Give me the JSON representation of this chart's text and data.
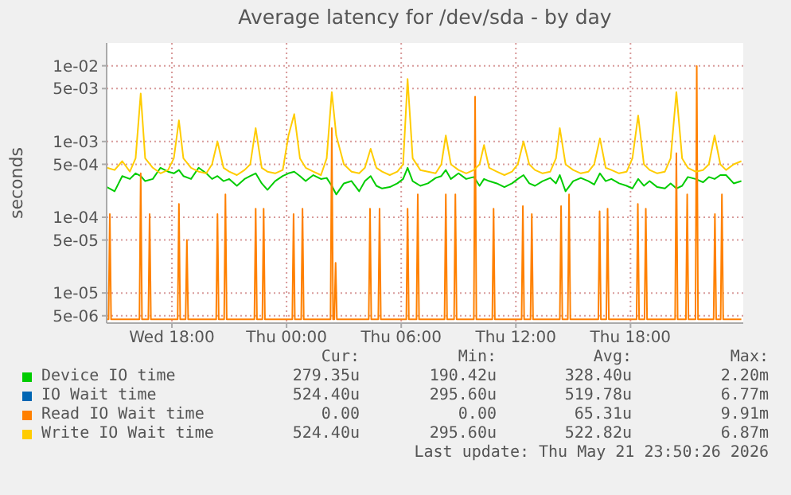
{
  "chart_data": {
    "type": "line",
    "title": "Average latency for /dev/sda - by day",
    "ylabel": "seconds",
    "log": "y",
    "grid": true,
    "legend": "bottom",
    "marker": "none",
    "line_style": "solid",
    "xlim": [
      "2026-05-20T14:35",
      "2026-05-21T23:54"
    ],
    "xticks": [
      {
        "value": "2026-05-20T18:00",
        "label": "Wed 18:00"
      },
      {
        "value": "2026-05-21T00:00",
        "label": "Thu 00:00"
      },
      {
        "value": "2026-05-21T06:00",
        "label": "Thu 06:00"
      },
      {
        "value": "2026-05-21T12:00",
        "label": "Thu 12:00"
      },
      {
        "value": "2026-05-21T18:00",
        "label": "Thu 18:00"
      }
    ],
    "ylim": [
      4e-06,
      0.02
    ],
    "yticks": [
      {
        "value": 5e-06,
        "label": "5e-06"
      },
      {
        "value": 1e-05,
        "label": "1e-05"
      },
      {
        "value": 5e-05,
        "label": "5e-05"
      },
      {
        "value": 0.0001,
        "label": "1e-04"
      },
      {
        "value": 0.0005,
        "label": "5e-04"
      },
      {
        "value": 0.001,
        "label": "1e-03"
      },
      {
        "value": 0.005,
        "label": "5e-03"
      },
      {
        "value": 0.01,
        "label": "1e-02"
      }
    ],
    "x": [
      "2026-05-20T14:36",
      "2026-05-20T15:00",
      "2026-05-20T15:24",
      "2026-05-20T15:48",
      "2026-05-20T16:06",
      "2026-05-20T16:22",
      "2026-05-20T16:36",
      "2026-05-20T17:00",
      "2026-05-20T17:24",
      "2026-05-20T17:48",
      "2026-05-20T18:06",
      "2026-05-20T18:22",
      "2026-05-20T18:36",
      "2026-05-20T19:00",
      "2026-05-20T19:24",
      "2026-05-20T19:48",
      "2026-05-20T20:06",
      "2026-05-20T20:23",
      "2026-05-20T20:42",
      "2026-05-20T21:00",
      "2026-05-20T21:24",
      "2026-05-20T21:48",
      "2026-05-20T22:06",
      "2026-05-20T22:23",
      "2026-05-20T22:42",
      "2026-05-20T23:00",
      "2026-05-20T23:24",
      "2026-05-20T23:48",
      "2026-05-21T00:06",
      "2026-05-21T00:24",
      "2026-05-21T00:42",
      "2026-05-21T01:00",
      "2026-05-21T01:24",
      "2026-05-21T01:48",
      "2026-05-21T02:06",
      "2026-05-21T02:22",
      "2026-05-21T02:36",
      "2026-05-21T03:00",
      "2026-05-21T03:24",
      "2026-05-21T03:48",
      "2026-05-21T04:06",
      "2026-05-21T04:24",
      "2026-05-21T04:42",
      "2026-05-21T05:00",
      "2026-05-21T05:24",
      "2026-05-21T05:48",
      "2026-05-21T06:06",
      "2026-05-21T06:20",
      "2026-05-21T06:36",
      "2026-05-21T07:00",
      "2026-05-21T07:24",
      "2026-05-21T07:48",
      "2026-05-21T08:06",
      "2026-05-21T08:20",
      "2026-05-21T08:36",
      "2026-05-21T09:00",
      "2026-05-21T09:24",
      "2026-05-21T09:48",
      "2026-05-21T10:06",
      "2026-05-21T10:20",
      "2026-05-21T10:36",
      "2026-05-21T11:00",
      "2026-05-21T11:24",
      "2026-05-21T11:48",
      "2026-05-21T12:06",
      "2026-05-21T12:24",
      "2026-05-21T12:42",
      "2026-05-21T13:00",
      "2026-05-21T13:24",
      "2026-05-21T13:48",
      "2026-05-21T14:06",
      "2026-05-21T14:18",
      "2026-05-21T14:36",
      "2026-05-21T15:00",
      "2026-05-21T15:24",
      "2026-05-21T15:48",
      "2026-05-21T16:06",
      "2026-05-21T16:24",
      "2026-05-21T16:42",
      "2026-05-21T17:00",
      "2026-05-21T17:24",
      "2026-05-21T17:48",
      "2026-05-21T18:06",
      "2026-05-21T18:24",
      "2026-05-21T18:42",
      "2026-05-21T19:00",
      "2026-05-21T19:24",
      "2026-05-21T19:48",
      "2026-05-21T20:06",
      "2026-05-21T20:24",
      "2026-05-21T20:42",
      "2026-05-21T21:00",
      "2026-05-21T21:24",
      "2026-05-21T21:48",
      "2026-05-21T22:06",
      "2026-05-21T22:24",
      "2026-05-21T22:42",
      "2026-05-21T23:00",
      "2026-05-21T23:24",
      "2026-05-21T23:48"
    ],
    "series": [
      {
        "name": "Device IO time",
        "color": "#00cc00",
        "values": [
          0.00025,
          0.00022,
          0.00035,
          0.00032,
          0.00038,
          0.00035,
          0.0003,
          0.00032,
          0.00045,
          0.0004,
          0.00038,
          0.00042,
          0.00035,
          0.00032,
          0.00045,
          0.00038,
          0.00032,
          0.00035,
          0.0003,
          0.00032,
          0.00026,
          0.00032,
          0.00035,
          0.00038,
          0.00028,
          0.00023,
          0.0003,
          0.00035,
          0.00038,
          0.0004,
          0.00035,
          0.0003,
          0.00036,
          0.00032,
          0.00033,
          0.00026,
          0.0002,
          0.00028,
          0.0003,
          0.00022,
          0.0003,
          0.00035,
          0.00026,
          0.00024,
          0.00025,
          0.00028,
          0.00032,
          0.00045,
          0.0003,
          0.00026,
          0.00028,
          0.00033,
          0.00035,
          0.00042,
          0.00032,
          0.00038,
          0.00032,
          0.00034,
          0.00026,
          0.00032,
          0.0003,
          0.00028,
          0.00025,
          0.00028,
          0.00032,
          0.00036,
          0.00028,
          0.00026,
          0.0003,
          0.00033,
          0.00028,
          0.00036,
          0.00022,
          0.0003,
          0.00033,
          0.0003,
          0.00027,
          0.00038,
          0.0003,
          0.00032,
          0.00028,
          0.00026,
          0.00024,
          0.00032,
          0.00026,
          0.0003,
          0.00025,
          0.00024,
          0.00028,
          0.00024,
          0.00026,
          0.00034,
          0.00032,
          0.00029,
          0.00034,
          0.00032,
          0.00036,
          0.00036,
          0.00028,
          0.0003
        ]
      },
      {
        "name": "IO Wait time",
        "color": "#0066b3",
        "values": [
          null,
          null,
          null,
          null,
          null,
          null,
          null,
          null,
          null,
          null,
          null,
          null,
          null,
          null,
          null,
          null,
          null,
          null,
          null,
          null,
          null,
          null,
          null,
          null,
          null,
          null,
          null,
          null,
          null,
          null,
          null,
          null,
          null,
          null,
          null,
          null,
          null,
          null,
          null,
          null,
          null,
          null,
          null,
          null,
          null,
          null,
          null,
          null,
          null,
          null,
          null,
          null,
          null,
          null,
          null,
          null,
          null,
          null,
          null,
          null,
          null,
          null,
          null,
          null,
          null,
          null,
          null,
          null,
          null,
          null,
          null,
          null,
          null,
          null,
          null,
          null,
          null,
          null,
          null,
          null,
          null,
          null,
          null,
          null,
          null,
          null,
          null,
          null,
          null,
          null,
          null,
          null,
          null,
          null,
          null,
          null,
          null,
          null,
          null,
          null
        ]
      },
      {
        "name": "Read IO Wait time",
        "color": "#ff8000",
        "x": [
          "2026-05-20T14:36",
          "2026-05-20T14:41",
          "2026-05-20T14:45",
          "2026-05-20T14:49",
          "2026-05-20T16:18",
          "2026-05-20T16:22",
          "2026-05-20T16:26",
          "2026-05-20T16:46",
          "2026-05-20T16:50",
          "2026-05-20T16:54",
          "2026-05-20T18:18",
          "2026-05-20T18:22",
          "2026-05-20T18:26",
          "2026-05-20T18:43",
          "2026-05-20T18:47",
          "2026-05-20T18:51",
          "2026-05-20T20:19",
          "2026-05-20T20:23",
          "2026-05-20T20:27",
          "2026-05-20T20:44",
          "2026-05-20T20:48",
          "2026-05-20T20:52",
          "2026-05-20T22:19",
          "2026-05-20T22:23",
          "2026-05-20T22:27",
          "2026-05-20T22:44",
          "2026-05-20T22:48",
          "2026-05-20T22:52",
          "2026-05-21T00:18",
          "2026-05-21T00:22",
          "2026-05-21T00:26",
          "2026-05-21T00:46",
          "2026-05-21T00:50",
          "2026-05-21T00:54",
          "2026-05-21T02:18",
          "2026-05-21T02:22",
          "2026-05-21T02:26",
          "2026-05-21T02:30",
          "2026-05-21T02:34",
          "2026-05-21T02:38",
          "2026-05-21T04:18",
          "2026-05-21T04:22",
          "2026-05-21T04:26",
          "2026-05-21T04:48",
          "2026-05-21T04:52",
          "2026-05-21T04:56",
          "2026-05-21T06:16",
          "2026-05-21T06:20",
          "2026-05-21T06:24",
          "2026-05-21T06:48",
          "2026-05-21T06:52",
          "2026-05-21T06:56",
          "2026-05-21T08:16",
          "2026-05-21T08:20",
          "2026-05-21T08:24",
          "2026-05-21T08:46",
          "2026-05-21T08:50",
          "2026-05-21T08:54",
          "2026-05-21T09:48",
          "2026-05-21T09:52",
          "2026-05-21T09:56",
          "2026-05-21T10:46",
          "2026-05-21T10:50",
          "2026-05-21T10:54",
          "2026-05-21T12:18",
          "2026-05-21T12:22",
          "2026-05-21T12:26",
          "2026-05-21T12:46",
          "2026-05-21T12:50",
          "2026-05-21T12:54",
          "2026-05-21T14:18",
          "2026-05-21T14:22",
          "2026-05-21T14:26",
          "2026-05-21T14:43",
          "2026-05-21T14:47",
          "2026-05-21T14:51",
          "2026-05-21T16:19",
          "2026-05-21T16:23",
          "2026-05-21T16:27",
          "2026-05-21T16:44",
          "2026-05-21T16:48",
          "2026-05-21T16:52",
          "2026-05-21T18:19",
          "2026-05-21T18:23",
          "2026-05-21T18:27",
          "2026-05-21T18:44",
          "2026-05-21T18:48",
          "2026-05-21T18:52",
          "2026-05-21T20:20",
          "2026-05-21T20:24",
          "2026-05-21T20:28",
          "2026-05-21T20:54",
          "2026-05-21T20:58",
          "2026-05-21T21:02",
          "2026-05-21T21:24",
          "2026-05-21T21:28",
          "2026-05-21T21:32",
          "2026-05-21T22:21",
          "2026-05-21T22:25",
          "2026-05-21T22:29",
          "2026-05-21T22:43",
          "2026-05-21T22:47",
          "2026-05-21T22:51",
          "2026-05-21T23:48"
        ],
        "values": [
          4.5e-06,
          4.5e-06,
          0.00011,
          4.5e-06,
          4.5e-06,
          0.00038,
          4.5e-06,
          4.5e-06,
          0.00011,
          4.5e-06,
          4.5e-06,
          0.00015,
          4.5e-06,
          4.5e-06,
          5e-05,
          4.5e-06,
          4.5e-06,
          0.00011,
          4.5e-06,
          4.5e-06,
          0.0002,
          4.5e-06,
          4.5e-06,
          0.00013,
          4.5e-06,
          4.5e-06,
          0.00013,
          4.5e-06,
          4.5e-06,
          0.00011,
          4.5e-06,
          4.5e-06,
          0.00013,
          4.5e-06,
          4.5e-06,
          0.0015,
          4.5e-06,
          4.5e-06,
          2.5e-05,
          4.5e-06,
          4.5e-06,
          0.00013,
          4.5e-06,
          4.5e-06,
          0.00013,
          4.5e-06,
          4.5e-06,
          0.00013,
          4.5e-06,
          4.5e-06,
          0.0002,
          4.5e-06,
          4.5e-06,
          0.0002,
          4.5e-06,
          4.5e-06,
          0.0002,
          4.5e-06,
          4.5e-06,
          0.0039,
          4.5e-06,
          4.5e-06,
          0.00013,
          4.5e-06,
          4.5e-06,
          0.00014,
          4.5e-06,
          4.5e-06,
          0.00011,
          4.5e-06,
          4.5e-06,
          0.00014,
          4.5e-06,
          4.5e-06,
          0.0002,
          4.5e-06,
          4.5e-06,
          0.00012,
          4.5e-06,
          4.5e-06,
          0.00013,
          4.5e-06,
          4.5e-06,
          0.00015,
          4.5e-06,
          4.5e-06,
          0.00013,
          4.5e-06,
          4.5e-06,
          0.0007,
          4.5e-06,
          4.5e-06,
          0.0002,
          4.5e-06,
          4.5e-06,
          0.0099,
          4.5e-06,
          4.5e-06,
          0.00011,
          4.5e-06,
          4.5e-06,
          0.0002,
          4.5e-06,
          4.5e-06
        ]
      },
      {
        "name": "Write IO Wait time",
        "color": "#ffcc00",
        "values": [
          0.00045,
          0.00042,
          0.00055,
          0.0004,
          0.0006,
          0.0043,
          0.0006,
          0.00045,
          0.00038,
          0.00042,
          0.0006,
          0.0019,
          0.0006,
          0.00045,
          0.0004,
          0.00038,
          0.0005,
          0.001,
          0.00045,
          0.0004,
          0.00036,
          0.00042,
          0.0005,
          0.0015,
          0.00045,
          0.0004,
          0.00038,
          0.00042,
          0.0012,
          0.0023,
          0.0006,
          0.00045,
          0.0004,
          0.00036,
          0.0006,
          0.0045,
          0.0012,
          0.0005,
          0.0004,
          0.00038,
          0.00045,
          0.0008,
          0.00045,
          0.0004,
          0.00036,
          0.0004,
          0.0005,
          0.0067,
          0.0006,
          0.00042,
          0.0004,
          0.00038,
          0.0005,
          0.0012,
          0.0005,
          0.00042,
          0.00038,
          0.00042,
          0.0005,
          0.0009,
          0.00045,
          0.0004,
          0.00036,
          0.0004,
          0.0005,
          0.001,
          0.0005,
          0.00042,
          0.00038,
          0.0004,
          0.0006,
          0.0015,
          0.0005,
          0.00042,
          0.00038,
          0.0004,
          0.0005,
          0.0011,
          0.00045,
          0.00042,
          0.00038,
          0.0004,
          0.0006,
          0.0022,
          0.0005,
          0.00042,
          0.00038,
          0.0004,
          0.0006,
          0.0045,
          0.0006,
          0.00045,
          0.0004,
          0.00042,
          0.0005,
          0.0012,
          0.0005,
          0.00042,
          0.0005,
          0.00055
        ]
      }
    ],
    "annotations": [
      "Cur:",
      "Min:",
      "Avg:",
      "Max:",
      "279.35u",
      "190.42u",
      "328.40u",
      "2.20m",
      "524.40u",
      "295.60u",
      "519.78u",
      "6.77m",
      "0.00",
      "0.00",
      "65.31u",
      "9.91m",
      "524.40u",
      "295.60u",
      "522.82u",
      "6.87m",
      "Last update: Thu May 21 23:50:26 2026"
    ]
  }
}
